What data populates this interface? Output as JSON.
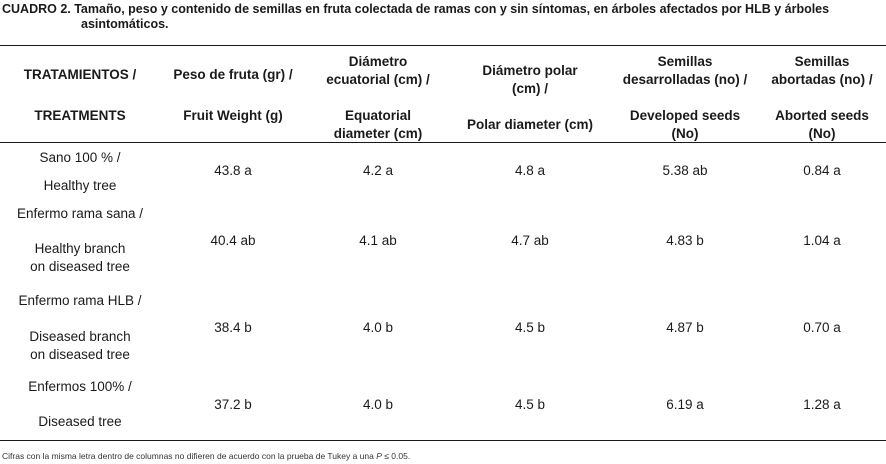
{
  "caption": {
    "line1": "CUADRO 2. Tamaño, peso y contenido de semillas en fruta colectada de ramas con y sin síntomas, en árboles afectados por HLB y árboles",
    "line2": "asintomáticos."
  },
  "headers": {
    "es": [
      [
        "TRATAMIENTOS /"
      ],
      [
        "Peso de fruta (gr) /"
      ],
      [
        "Diámetro",
        "ecuatorial (cm) /"
      ],
      [
        "Diámetro polar",
        "(cm) /"
      ],
      [
        "Semillas",
        "desarrolladas (no) /"
      ],
      [
        "Semillas",
        "abortadas (no) /"
      ]
    ],
    "en": [
      [
        "TREATMENTS"
      ],
      [
        "Fruit Weight (g)"
      ],
      [
        "Equatorial",
        "diameter (cm)"
      ],
      [
        "Polar diameter (cm)"
      ],
      [
        "Developed seeds",
        "(No)"
      ],
      [
        "Aborted seeds",
        "(No)"
      ]
    ]
  },
  "rows": [
    {
      "treatment_es": [
        "Sano 100 % /"
      ],
      "treatment_en": [
        "Healthy tree"
      ],
      "values": [
        "43.8 a",
        "4.2 a",
        "4.8 a",
        "5.38 ab",
        "0.84 a"
      ]
    },
    {
      "treatment_es": [
        "Enfermo rama sana /"
      ],
      "treatment_en": [
        "Healthy branch",
        "on diseased tree"
      ],
      "values": [
        "40.4 ab",
        "4.1 ab",
        "4.7 ab",
        "4.83 b",
        "1.04 a"
      ]
    },
    {
      "treatment_es": [
        "Enfermo rama  HLB /"
      ],
      "treatment_en": [
        "Diseased branch",
        "on diseased tree"
      ],
      "values": [
        "38.4 b",
        "4.0 b",
        "4.5 b",
        "4.87 b",
        "0.70 a"
      ]
    },
    {
      "treatment_es": [
        "Enfermos  100% /"
      ],
      "treatment_en": [
        "Diseased tree"
      ],
      "values": [
        "37.2 b",
        "4.0 b",
        "4.5 b",
        "6.19 a",
        "1.28 a"
      ]
    }
  ],
  "footnote": {
    "text": "Cifras con la misma letra dentro de columnas no difieren de acuerdo con la prueba de Tukey a una ",
    "p_symbol": "P",
    "threshold": " ≤ 0.05."
  }
}
